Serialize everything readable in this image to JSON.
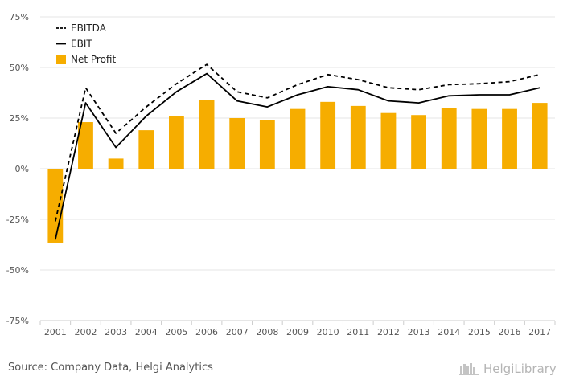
{
  "chart_data": {
    "type": "bar",
    "title": "",
    "xlabel": "",
    "ylabel": "",
    "categories": [
      "2001",
      "2002",
      "2003",
      "2004",
      "2005",
      "2006",
      "2007",
      "2008",
      "2009",
      "2010",
      "2011",
      "2012",
      "2013",
      "2014",
      "2015",
      "2016",
      "2017"
    ],
    "y_ticks": [
      "75%",
      "50%",
      "25%",
      "0%",
      "-25%",
      "-50%",
      "-75%"
    ],
    "ylim": [
      -75,
      75
    ],
    "grid": true,
    "legend_position": "top-left",
    "series": [
      {
        "name": "EBITDA",
        "kind": "line",
        "style": "dashed",
        "color": "#000000",
        "values": [
          -26,
          40,
          17.5,
          30.5,
          42,
          51.5,
          38,
          35,
          41.5,
          46.5,
          44,
          40,
          39,
          41.5,
          42,
          43,
          46.5
        ]
      },
      {
        "name": "EBIT",
        "kind": "line",
        "style": "solid",
        "color": "#000000",
        "values": [
          -35,
          32.5,
          10.5,
          26,
          38,
          47,
          33.5,
          30.5,
          36.5,
          40.5,
          39,
          33.5,
          32.5,
          36,
          36.5,
          36.5,
          40
        ]
      },
      {
        "name": "Net Profit",
        "kind": "bar",
        "color": "#f6ad00",
        "values": [
          -36.5,
          23,
          5,
          19,
          26,
          34,
          25,
          24,
          29.5,
          33,
          31,
          27.5,
          26.5,
          30,
          29.5,
          29.5,
          32.5
        ]
      }
    ]
  },
  "footer": {
    "source": "Source: Company Data, Helgi Analytics",
    "brand": "HelgiLibrary"
  }
}
